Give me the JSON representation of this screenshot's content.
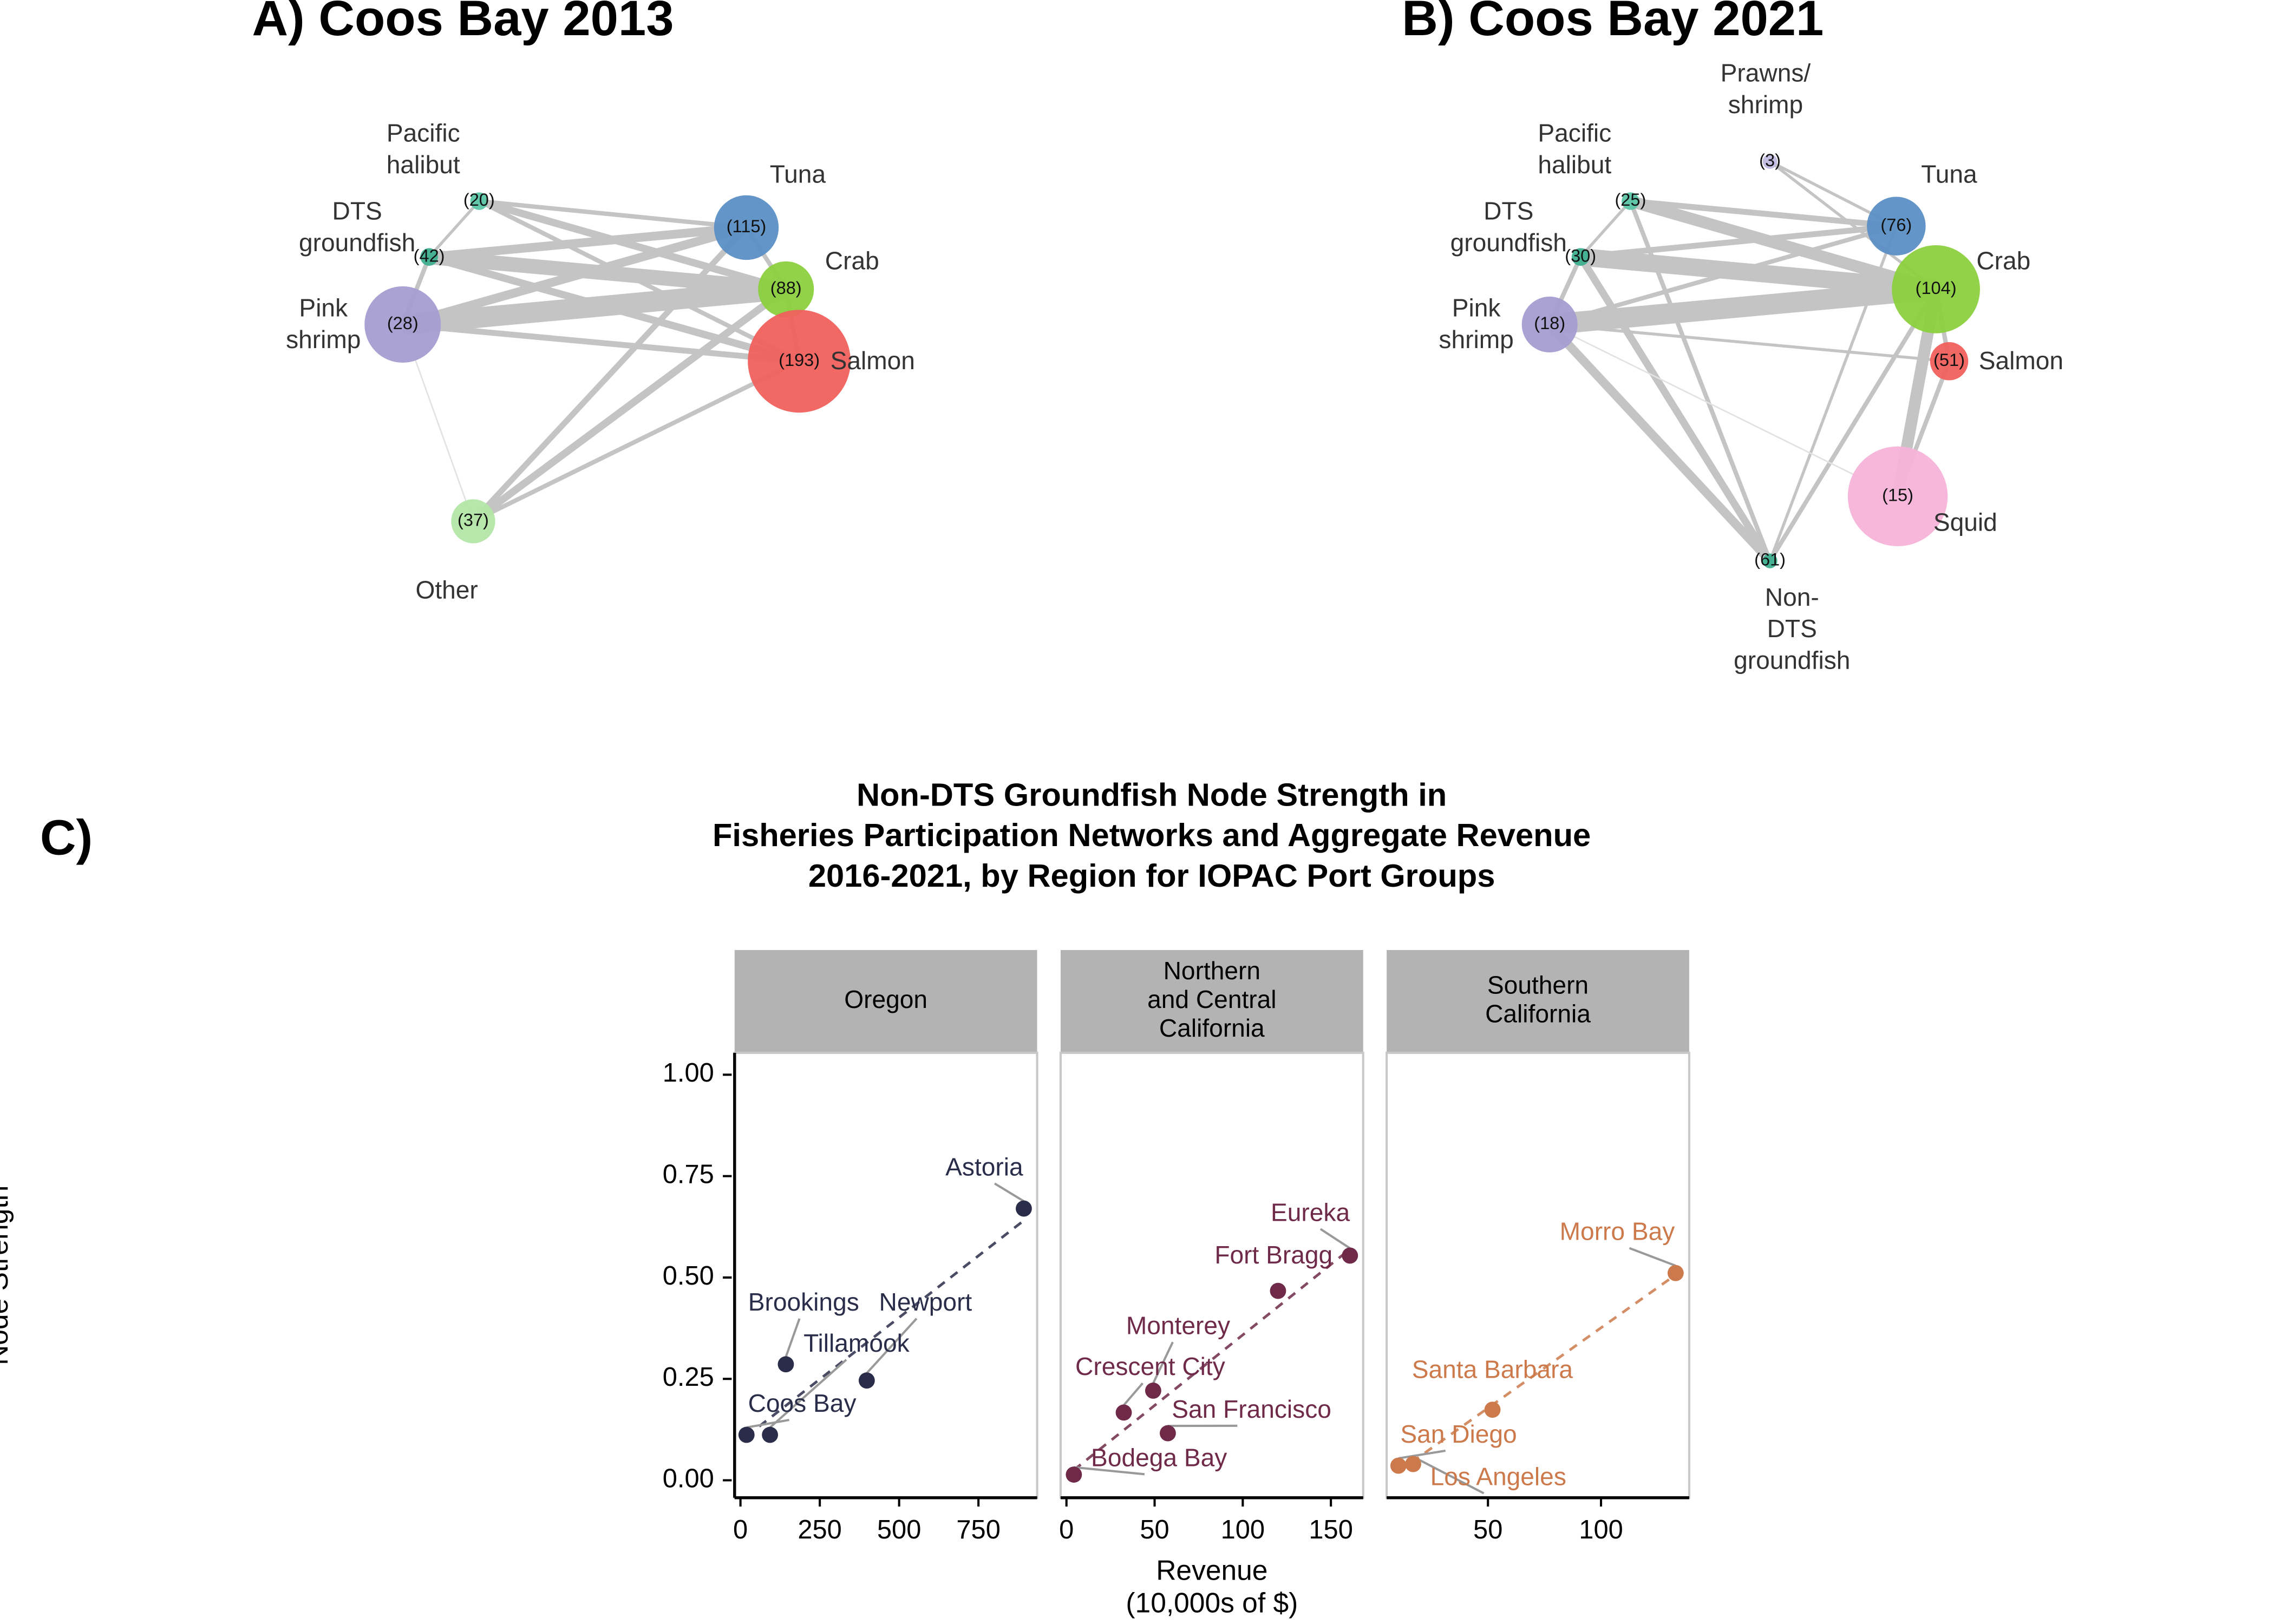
{
  "panel_label": "C)",
  "chart_data": [
    {
      "type": "network",
      "title": "A) Coos Bay 2013",
      "nodes": [
        [
          "Pacific",
          "halibut"
        ],
        [
          "DTS",
          "groundfish"
        ],
        [
          "Pink",
          "shrimp"
        ],
        [
          "Tuna"
        ],
        [
          "Crab"
        ],
        [
          "Salmon"
        ],
        [
          "Other"
        ]
      ],
      "values": [
        20,
        42,
        28,
        115,
        88,
        193,
        37
      ],
      "value_labels": [
        "(20)",
        "(42)",
        "(28)",
        "(115)",
        "(88)",
        "(193)",
        "(37)"
      ],
      "colors": [
        "#5cc6a6",
        "#3fb08f",
        "#a79dd2",
        "#5b8fc5",
        "#8cd03e",
        "#f0605d",
        "#b4e6a6"
      ],
      "edges": {
        "source": [
          2,
          1,
          1,
          1,
          2,
          0,
          0,
          0,
          6,
          6,
          6,
          2,
          1,
          2,
          3,
          4,
          0
        ],
        "target": [
          4,
          4,
          3,
          5,
          3,
          3,
          4,
          5,
          3,
          4,
          5,
          5,
          2,
          6,
          4,
          5,
          1
        ],
        "weights": [
          14,
          10,
          6,
          5,
          6,
          3,
          5,
          3,
          4,
          5,
          3,
          4,
          3,
          1,
          3,
          3,
          2
        ]
      }
    },
    {
      "type": "network",
      "title": "B) Coos Bay 2021",
      "nodes": [
        [
          "Prawns/",
          "shrimp"
        ],
        [
          "Pacific",
          "halibut"
        ],
        [
          "DTS",
          "groundfish"
        ],
        [
          "Pink",
          "shrimp"
        ],
        [
          "Tuna"
        ],
        [
          "Crab"
        ],
        [
          "Salmon"
        ],
        [
          "Squid"
        ],
        [
          "Non-",
          "DTS",
          "groundfish"
        ]
      ],
      "values": [
        3,
        25,
        30,
        18,
        76,
        104,
        51,
        15,
        61
      ],
      "value_labels": [
        "(3)",
        "(25)",
        "(30)",
        "(18)",
        "(76)",
        "(104)",
        "(51)",
        "(15)",
        "(61)"
      ],
      "colors": [
        "#c2bae2",
        "#5cc6a6",
        "#3fb08f",
        "#a79dd2",
        "#5b8fc5",
        "#8cd03e",
        "#f0605d",
        "#f5b3d8",
        "#3fb08f"
      ],
      "edges": {
        "source": [
          3,
          2,
          1,
          1,
          2,
          3,
          3,
          2,
          1,
          8,
          8,
          7,
          7,
          3,
          3,
          0,
          0,
          2,
          1,
          5
        ],
        "target": [
          5,
          5,
          5,
          4,
          4,
          4,
          8,
          8,
          8,
          5,
          4,
          5,
          6,
          6,
          7,
          4,
          5,
          3,
          2,
          6
        ],
        "weights": [
          14,
          12,
          8,
          4,
          4,
          3,
          6,
          5,
          3,
          3,
          2,
          8,
          3,
          2,
          1,
          2,
          2,
          3,
          2,
          3
        ]
      }
    },
    {
      "type": "scatter",
      "title": [
        "Non-DTS Groundfish Node Strength in",
        "Fisheries Participation Networks and Aggregate Revenue",
        "2016-2021, by Region for IOPAC Port Groups"
      ],
      "y_label": "Node Strength",
      "x_label": [
        "Revenue",
        "(10,000s of $)"
      ],
      "ylim": [
        -0.043,
        1.054
      ],
      "yticks": [
        {
          "value": 0,
          "label": "0.00"
        },
        {
          "value": 0.25,
          "label": "0.25"
        },
        {
          "value": 0.5,
          "label": "0.50"
        },
        {
          "value": 0.75,
          "label": "0.75"
        },
        {
          "value": 1,
          "label": "1.00"
        }
      ],
      "trend": "linear",
      "facets": [
        {
          "name": [
            "Oregon"
          ],
          "color": "#2a2d4a",
          "xlim": [
            -18.5,
            935
          ],
          "xticks": [
            0,
            250,
            500,
            750
          ],
          "labels": [
            "Astoria",
            "Newport",
            "Brookings",
            "Tillamook",
            "Coos Bay"
          ],
          "x": [
            893,
            398,
            143,
            93,
            19
          ],
          "values": [
            0.67,
            0.246,
            0.286,
            0.112,
            0.112
          ]
        },
        {
          "name": [
            "Northern",
            "and Central",
            "California"
          ],
          "color": "#6e2a48",
          "xlim": [
            -3.3,
            168.3
          ],
          "xticks": [
            0,
            50,
            100,
            150
          ],
          "labels": [
            "Eureka",
            "Fort Bragg",
            "Monterey",
            "Crescent City",
            "San Francisco",
            "Bodega Bay"
          ],
          "x": [
            160.8,
            120,
            49.2,
            32.5,
            57.5,
            4.2
          ],
          "values": [
            0.554,
            0.467,
            0.221,
            0.167,
            0.116,
            0.014
          ]
        },
        {
          "name": [
            "Southern",
            "California"
          ],
          "color": "#cc7a4b",
          "xlim": [
            5.2,
            139
          ],
          "xticks": [
            50,
            100
          ],
          "labels": [
            "Morro Bay",
            "Santa Barbara",
            "San Diego",
            "Los Angeles"
          ],
          "x": [
            133,
            52,
            10.4,
            16.9
          ],
          "values": [
            0.511,
            0.174,
            0.036,
            0.04
          ]
        }
      ]
    }
  ]
}
